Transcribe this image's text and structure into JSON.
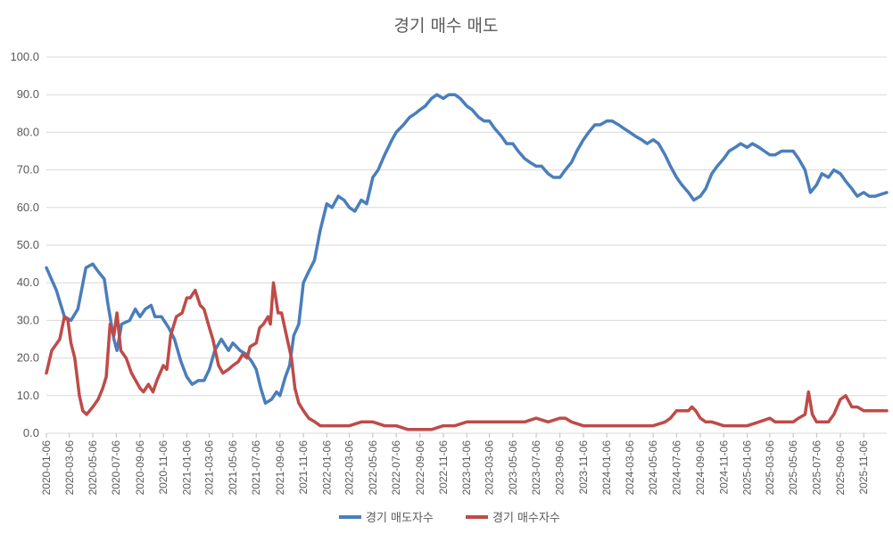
{
  "chart_data": {
    "type": "line",
    "title": "경기 매수 매도",
    "xlabel": "",
    "ylabel": "",
    "ylim": [
      0,
      100
    ],
    "yticks": [
      "0.0",
      "10.0",
      "20.0",
      "30.0",
      "40.0",
      "50.0",
      "60.0",
      "70.0",
      "80.0",
      "90.0",
      "100.0"
    ],
    "x_start": "2020-01-06",
    "x_end": "2026-01-05",
    "xtick_labels": [
      "2020-01-06",
      "2020-03-06",
      "2020-05-06",
      "2020-07-06",
      "2020-09-06",
      "2020-11-06",
      "2021-01-06",
      "2021-03-06",
      "2021-05-06",
      "2021-07-06",
      "2021-09-06",
      "2021-11-06",
      "2022-01-06",
      "2022-03-06",
      "2022-05-06",
      "2022-07-06",
      "2022-09-06",
      "2022-11-06",
      "2023-01-06",
      "2023-03-06",
      "2023-05-06",
      "2023-07-06",
      "2023-09-06",
      "2023-11-06",
      "2024-01-06",
      "2024-03-06",
      "2024-05-06",
      "2024-07-06",
      "2024-09-06",
      "2024-11-06",
      "2025-01-06",
      "2025-03-06",
      "2025-05-06",
      "2025-07-06",
      "2025-09-06",
      "2025-11-06"
    ],
    "grid": true,
    "legend": "bottom",
    "series": [
      {
        "name": "경기 매도자수",
        "color": "#4a7ebb",
        "points": [
          [
            "2020-01-06",
            44
          ],
          [
            "2020-02-01",
            38
          ],
          [
            "2020-02-22",
            31
          ],
          [
            "2020-03-10",
            30
          ],
          [
            "2020-03-28",
            33
          ],
          [
            "2020-04-18",
            44
          ],
          [
            "2020-05-06",
            45
          ],
          [
            "2020-05-20",
            43
          ],
          [
            "2020-06-05",
            41
          ],
          [
            "2020-06-15",
            34
          ],
          [
            "2020-06-30",
            25
          ],
          [
            "2020-07-08",
            22
          ],
          [
            "2020-07-20",
            29
          ],
          [
            "2020-08-10",
            30
          ],
          [
            "2020-08-25",
            33
          ],
          [
            "2020-09-06",
            31
          ],
          [
            "2020-09-20",
            33
          ],
          [
            "2020-10-05",
            34
          ],
          [
            "2020-10-15",
            31
          ],
          [
            "2020-11-01",
            31
          ],
          [
            "2020-11-20",
            28
          ],
          [
            "2020-12-05",
            25
          ],
          [
            "2020-12-22",
            19
          ],
          [
            "2021-01-06",
            15
          ],
          [
            "2021-01-20",
            13
          ],
          [
            "2021-02-05",
            14
          ],
          [
            "2021-02-20",
            14
          ],
          [
            "2021-03-06",
            17
          ],
          [
            "2021-03-20",
            22
          ],
          [
            "2021-04-06",
            25
          ],
          [
            "2021-04-25",
            22
          ],
          [
            "2021-05-06",
            24
          ],
          [
            "2021-05-25",
            22
          ],
          [
            "2021-06-10",
            21
          ],
          [
            "2021-06-25",
            19
          ],
          [
            "2021-07-06",
            17
          ],
          [
            "2021-07-18",
            12
          ],
          [
            "2021-07-30",
            8
          ],
          [
            "2021-08-15",
            9
          ],
          [
            "2021-08-28",
            11
          ],
          [
            "2021-09-06",
            10
          ],
          [
            "2021-09-20",
            15
          ],
          [
            "2021-10-01",
            18
          ],
          [
            "2021-10-12",
            26
          ],
          [
            "2021-10-25",
            29
          ],
          [
            "2021-11-06",
            40
          ],
          [
            "2021-11-20",
            43
          ],
          [
            "2021-12-05",
            46
          ],
          [
            "2021-12-20",
            54
          ],
          [
            "2022-01-06",
            61
          ],
          [
            "2022-01-20",
            60
          ],
          [
            "2022-02-05",
            63
          ],
          [
            "2022-02-20",
            62
          ],
          [
            "2022-03-06",
            60
          ],
          [
            "2022-03-20",
            59
          ],
          [
            "2022-04-06",
            62
          ],
          [
            "2022-04-20",
            61
          ],
          [
            "2022-05-06",
            68
          ],
          [
            "2022-05-20",
            70
          ],
          [
            "2022-06-06",
            74
          ],
          [
            "2022-06-25",
            78
          ],
          [
            "2022-07-06",
            80
          ],
          [
            "2022-07-25",
            82
          ],
          [
            "2022-08-10",
            84
          ],
          [
            "2022-08-25",
            85
          ],
          [
            "2022-09-06",
            86
          ],
          [
            "2022-09-20",
            87
          ],
          [
            "2022-10-06",
            89
          ],
          [
            "2022-10-20",
            90
          ],
          [
            "2022-11-06",
            89
          ],
          [
            "2022-11-20",
            90
          ],
          [
            "2022-12-06",
            90
          ],
          [
            "2022-12-20",
            89
          ],
          [
            "2023-01-06",
            87
          ],
          [
            "2023-01-20",
            86
          ],
          [
            "2023-02-06",
            84
          ],
          [
            "2023-02-20",
            83
          ],
          [
            "2023-03-06",
            83
          ],
          [
            "2023-03-20",
            81
          ],
          [
            "2023-04-06",
            79
          ],
          [
            "2023-04-20",
            77
          ],
          [
            "2023-05-06",
            77
          ],
          [
            "2023-05-20",
            75
          ],
          [
            "2023-06-06",
            73
          ],
          [
            "2023-06-20",
            72
          ],
          [
            "2023-07-06",
            71
          ],
          [
            "2023-07-20",
            71
          ],
          [
            "2023-08-06",
            69
          ],
          [
            "2023-08-20",
            68
          ],
          [
            "2023-09-06",
            68
          ],
          [
            "2023-09-20",
            70
          ],
          [
            "2023-10-06",
            72
          ],
          [
            "2023-10-20",
            75
          ],
          [
            "2023-11-06",
            78
          ],
          [
            "2023-11-20",
            80
          ],
          [
            "2023-12-06",
            82
          ],
          [
            "2023-12-20",
            82
          ],
          [
            "2024-01-06",
            83
          ],
          [
            "2024-01-20",
            83
          ],
          [
            "2024-02-06",
            82
          ],
          [
            "2024-02-20",
            81
          ],
          [
            "2024-03-06",
            80
          ],
          [
            "2024-03-20",
            79
          ],
          [
            "2024-04-06",
            78
          ],
          [
            "2024-04-20",
            77
          ],
          [
            "2024-05-06",
            78
          ],
          [
            "2024-05-20",
            77
          ],
          [
            "2024-06-06",
            74
          ],
          [
            "2024-06-20",
            71
          ],
          [
            "2024-07-06",
            68
          ],
          [
            "2024-07-20",
            66
          ],
          [
            "2024-08-06",
            64
          ],
          [
            "2024-08-20",
            62
          ],
          [
            "2024-09-06",
            63
          ],
          [
            "2024-09-20",
            65
          ],
          [
            "2024-10-06",
            69
          ],
          [
            "2024-10-20",
            71
          ],
          [
            "2024-11-06",
            73
          ],
          [
            "2024-11-20",
            75
          ],
          [
            "2024-12-06",
            76
          ],
          [
            "2024-12-20",
            77
          ],
          [
            "2025-01-06",
            76
          ],
          [
            "2025-01-20",
            77
          ],
          [
            "2025-02-06",
            76
          ],
          [
            "2025-02-20",
            75
          ],
          [
            "2025-03-06",
            74
          ],
          [
            "2025-03-20",
            74
          ],
          [
            "2025-04-06",
            75
          ],
          [
            "2025-04-20",
            75
          ],
          [
            "2025-05-06",
            75
          ],
          [
            "2025-05-20",
            73
          ],
          [
            "2025-06-06",
            70
          ],
          [
            "2025-06-20",
            64
          ],
          [
            "2025-07-06",
            66
          ],
          [
            "2025-07-20",
            69
          ],
          [
            "2025-08-06",
            68
          ],
          [
            "2025-08-20",
            70
          ],
          [
            "2025-09-06",
            69
          ],
          [
            "2025-09-20",
            67
          ],
          [
            "2025-10-06",
            65
          ],
          [
            "2025-10-20",
            63
          ],
          [
            "2025-11-06",
            64
          ],
          [
            "2025-11-20",
            63
          ],
          [
            "2025-12-06",
            63
          ],
          [
            "2026-01-05",
            64
          ]
        ]
      },
      {
        "name": "경기 매수자수",
        "color": "#be4b48",
        "points": [
          [
            "2020-01-06",
            16
          ],
          [
            "2020-01-20",
            22
          ],
          [
            "2020-02-10",
            25
          ],
          [
            "2020-02-22",
            31
          ],
          [
            "2020-03-02",
            30
          ],
          [
            "2020-03-10",
            24
          ],
          [
            "2020-03-20",
            20
          ],
          [
            "2020-04-01",
            10
          ],
          [
            "2020-04-10",
            6
          ],
          [
            "2020-04-20",
            5
          ],
          [
            "2020-05-06",
            7
          ],
          [
            "2020-05-20",
            9
          ],
          [
            "2020-06-01",
            12
          ],
          [
            "2020-06-10",
            15
          ],
          [
            "2020-06-20",
            29
          ],
          [
            "2020-06-30",
            26
          ],
          [
            "2020-07-08",
            32
          ],
          [
            "2020-07-18",
            22
          ],
          [
            "2020-08-01",
            20
          ],
          [
            "2020-08-15",
            16
          ],
          [
            "2020-09-06",
            12
          ],
          [
            "2020-09-15",
            11
          ],
          [
            "2020-09-28",
            13
          ],
          [
            "2020-10-10",
            11
          ],
          [
            "2020-10-20",
            14
          ],
          [
            "2020-11-06",
            18
          ],
          [
            "2020-11-15",
            17
          ],
          [
            "2020-11-25",
            26
          ],
          [
            "2020-12-10",
            31
          ],
          [
            "2020-12-25",
            32
          ],
          [
            "2021-01-06",
            36
          ],
          [
            "2021-01-15",
            36
          ],
          [
            "2021-01-28",
            38
          ],
          [
            "2021-02-10",
            34
          ],
          [
            "2021-02-20",
            33
          ],
          [
            "2021-03-06",
            28
          ],
          [
            "2021-03-15",
            25
          ],
          [
            "2021-03-30",
            18
          ],
          [
            "2021-04-10",
            16
          ],
          [
            "2021-04-25",
            17
          ],
          [
            "2021-05-06",
            18
          ],
          [
            "2021-05-20",
            19
          ],
          [
            "2021-06-01",
            21
          ],
          [
            "2021-06-12",
            20
          ],
          [
            "2021-06-20",
            23
          ],
          [
            "2021-07-06",
            24
          ],
          [
            "2021-07-15",
            28
          ],
          [
            "2021-07-25",
            29
          ],
          [
            "2021-08-06",
            31
          ],
          [
            "2021-08-12",
            29
          ],
          [
            "2021-08-20",
            40
          ],
          [
            "2021-09-01",
            32
          ],
          [
            "2021-09-10",
            32
          ],
          [
            "2021-09-25",
            25
          ],
          [
            "2021-10-06",
            20
          ],
          [
            "2021-10-15",
            12
          ],
          [
            "2021-10-25",
            8
          ],
          [
            "2021-11-06",
            6
          ],
          [
            "2021-11-20",
            4
          ],
          [
            "2021-12-06",
            3
          ],
          [
            "2021-12-20",
            2
          ],
          [
            "2022-01-06",
            2
          ],
          [
            "2022-02-06",
            2
          ],
          [
            "2022-03-06",
            2
          ],
          [
            "2022-04-06",
            3
          ],
          [
            "2022-05-06",
            3
          ],
          [
            "2022-06-06",
            2
          ],
          [
            "2022-07-06",
            2
          ],
          [
            "2022-08-06",
            1
          ],
          [
            "2022-09-06",
            1
          ],
          [
            "2022-10-06",
            1
          ],
          [
            "2022-11-06",
            2
          ],
          [
            "2022-12-06",
            2
          ],
          [
            "2023-01-06",
            3
          ],
          [
            "2023-02-06",
            3
          ],
          [
            "2023-03-06",
            3
          ],
          [
            "2023-04-06",
            3
          ],
          [
            "2023-05-06",
            3
          ],
          [
            "2023-06-06",
            3
          ],
          [
            "2023-07-06",
            4
          ],
          [
            "2023-08-06",
            3
          ],
          [
            "2023-09-06",
            4
          ],
          [
            "2023-09-20",
            4
          ],
          [
            "2023-10-06",
            3
          ],
          [
            "2023-11-06",
            2
          ],
          [
            "2023-12-06",
            2
          ],
          [
            "2024-01-06",
            2
          ],
          [
            "2024-02-06",
            2
          ],
          [
            "2024-03-06",
            2
          ],
          [
            "2024-04-06",
            2
          ],
          [
            "2024-05-06",
            2
          ],
          [
            "2024-06-06",
            3
          ],
          [
            "2024-06-20",
            4
          ],
          [
            "2024-07-06",
            6
          ],
          [
            "2024-07-20",
            6
          ],
          [
            "2024-08-06",
            6
          ],
          [
            "2024-08-15",
            7
          ],
          [
            "2024-08-25",
            6
          ],
          [
            "2024-09-06",
            4
          ],
          [
            "2024-09-20",
            3
          ],
          [
            "2024-10-06",
            3
          ],
          [
            "2024-11-06",
            2
          ],
          [
            "2024-12-06",
            2
          ],
          [
            "2025-01-06",
            2
          ],
          [
            "2025-02-06",
            3
          ],
          [
            "2025-03-06",
            4
          ],
          [
            "2025-03-20",
            3
          ],
          [
            "2025-04-06",
            3
          ],
          [
            "2025-05-06",
            3
          ],
          [
            "2025-05-20",
            4
          ],
          [
            "2025-06-06",
            5
          ],
          [
            "2025-06-15",
            11
          ],
          [
            "2025-06-25",
            5
          ],
          [
            "2025-07-06",
            3
          ],
          [
            "2025-07-20",
            3
          ],
          [
            "2025-08-06",
            3
          ],
          [
            "2025-08-20",
            5
          ],
          [
            "2025-09-06",
            9
          ],
          [
            "2025-09-20",
            10
          ],
          [
            "2025-10-06",
            7
          ],
          [
            "2025-10-20",
            7
          ],
          [
            "2025-11-06",
            6
          ],
          [
            "2025-11-20",
            6
          ],
          [
            "2025-12-06",
            6
          ],
          [
            "2026-01-05",
            6
          ]
        ]
      }
    ]
  }
}
